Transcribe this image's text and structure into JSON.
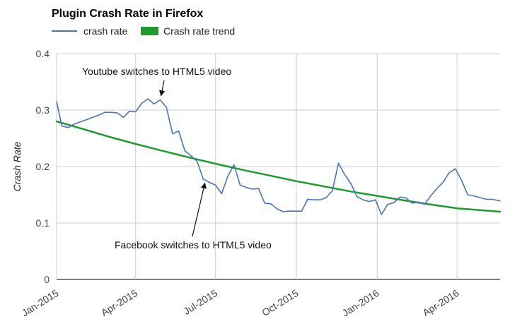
{
  "chart_data": {
    "type": "line",
    "title": "Plugin Crash Rate in Firefox",
    "xlabel": "",
    "ylabel": "Crash Rate",
    "ylim": [
      0,
      0.4
    ],
    "yticks": [
      "0",
      "0.1",
      "0.2",
      "0.3",
      "0.4"
    ],
    "ytick_values": [
      0,
      0.1,
      0.2,
      0.3,
      0.4
    ],
    "xticks": [
      {
        "label": "Jan-2015",
        "date": "2015-01-01"
      },
      {
        "label": "Apr-2015",
        "date": "2015-04-01"
      },
      {
        "label": "Jul-2015",
        "date": "2015-07-01"
      },
      {
        "label": "Oct-2015",
        "date": "2015-10-01"
      },
      {
        "label": "Jan-2016",
        "date": "2016-01-01"
      },
      {
        "label": "Apr-2016",
        "date": "2016-04-01"
      }
    ],
    "xlim": [
      "2015-01-01",
      "2016-05-20"
    ],
    "grid": true,
    "legend_position": "top",
    "series": [
      {
        "name": "crash rate",
        "color": "#4a72b8",
        "points": [
          [
            "2015-01-01",
            0.315
          ],
          [
            "2015-01-07",
            0.272
          ],
          [
            "2015-01-14",
            0.269
          ],
          [
            "2015-01-21",
            0.275
          ],
          [
            "2015-01-28",
            0.279
          ],
          [
            "2015-02-04",
            0.283
          ],
          [
            "2015-02-11",
            0.287
          ],
          [
            "2015-02-18",
            0.291
          ],
          [
            "2015-02-25",
            0.296
          ],
          [
            "2015-03-04",
            0.296
          ],
          [
            "2015-03-11",
            0.295
          ],
          [
            "2015-03-18",
            0.287
          ],
          [
            "2015-03-25",
            0.298
          ],
          [
            "2015-04-01",
            0.297
          ],
          [
            "2015-04-08",
            0.312
          ],
          [
            "2015-04-15",
            0.32
          ],
          [
            "2015-04-22",
            0.311
          ],
          [
            "2015-04-29",
            0.318
          ],
          [
            "2015-05-06",
            0.305
          ],
          [
            "2015-05-13",
            0.258
          ],
          [
            "2015-05-20",
            0.263
          ],
          [
            "2015-05-27",
            0.228
          ],
          [
            "2015-06-03",
            0.219
          ],
          [
            "2015-06-10",
            0.209
          ],
          [
            "2015-06-17",
            0.178
          ],
          [
            "2015-06-24",
            0.172
          ],
          [
            "2015-07-01",
            0.167
          ],
          [
            "2015-07-08",
            0.152
          ],
          [
            "2015-07-15",
            0.183
          ],
          [
            "2015-07-22",
            0.203
          ],
          [
            "2015-07-29",
            0.167
          ],
          [
            "2015-08-05",
            0.163
          ],
          [
            "2015-08-12",
            0.16
          ],
          [
            "2015-08-19",
            0.161
          ],
          [
            "2015-08-26",
            0.135
          ],
          [
            "2015-09-02",
            0.134
          ],
          [
            "2015-09-09",
            0.125
          ],
          [
            "2015-09-16",
            0.12
          ],
          [
            "2015-09-23",
            0.121
          ],
          [
            "2015-09-30",
            0.121
          ],
          [
            "2015-10-07",
            0.121
          ],
          [
            "2015-10-14",
            0.142
          ],
          [
            "2015-10-21",
            0.141
          ],
          [
            "2015-10-28",
            0.141
          ],
          [
            "2015-11-04",
            0.145
          ],
          [
            "2015-11-11",
            0.157
          ],
          [
            "2015-11-18",
            0.206
          ],
          [
            "2015-11-25",
            0.186
          ],
          [
            "2015-12-02",
            0.17
          ],
          [
            "2015-12-09",
            0.147
          ],
          [
            "2015-12-16",
            0.141
          ],
          [
            "2015-12-23",
            0.138
          ],
          [
            "2015-12-30",
            0.141
          ],
          [
            "2016-01-06",
            0.115
          ],
          [
            "2016-01-13",
            0.133
          ],
          [
            "2016-01-20",
            0.136
          ],
          [
            "2016-01-27",
            0.146
          ],
          [
            "2016-02-03",
            0.144
          ],
          [
            "2016-02-10",
            0.135
          ],
          [
            "2016-02-17",
            0.137
          ],
          [
            "2016-02-24",
            0.133
          ],
          [
            "2016-03-02",
            0.148
          ],
          [
            "2016-03-09",
            0.161
          ],
          [
            "2016-03-16",
            0.172
          ],
          [
            "2016-03-23",
            0.189
          ],
          [
            "2016-03-30",
            0.196
          ],
          [
            "2016-04-06",
            0.176
          ],
          [
            "2016-04-13",
            0.15
          ],
          [
            "2016-04-20",
            0.148
          ],
          [
            "2016-04-27",
            0.145
          ],
          [
            "2016-05-04",
            0.142
          ],
          [
            "2016-05-11",
            0.142
          ],
          [
            "2016-05-20",
            0.139
          ]
        ]
      },
      {
        "name": "Crash rate trend",
        "color": "#1e9a2e",
        "points": [
          [
            "2015-01-01",
            0.28
          ],
          [
            "2015-02-01",
            0.266
          ],
          [
            "2015-03-01",
            0.253
          ],
          [
            "2015-04-01",
            0.24
          ],
          [
            "2015-05-01",
            0.228
          ],
          [
            "2015-06-01",
            0.216
          ],
          [
            "2015-07-01",
            0.205
          ],
          [
            "2015-08-01",
            0.194
          ],
          [
            "2015-09-01",
            0.184
          ],
          [
            "2015-10-01",
            0.174
          ],
          [
            "2015-11-01",
            0.165
          ],
          [
            "2015-12-01",
            0.156
          ],
          [
            "2016-01-01",
            0.148
          ],
          [
            "2016-02-01",
            0.14
          ],
          [
            "2016-03-01",
            0.133
          ],
          [
            "2016-04-01",
            0.126
          ],
          [
            "2016-05-20",
            0.12
          ]
        ]
      }
    ],
    "annotations": [
      {
        "text": "Youtube switches to HTML5 video",
        "date": "2015-04-29",
        "value": 0.318
      },
      {
        "text": "Facebook switches to HTML5 video",
        "date": "2015-06-20",
        "value": 0.178
      }
    ]
  }
}
